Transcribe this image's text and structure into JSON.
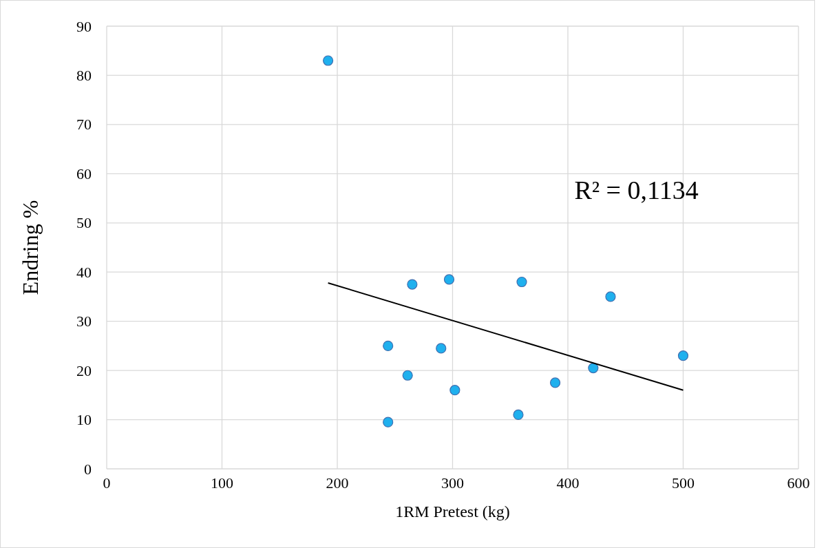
{
  "chart_data": {
    "type": "scatter",
    "xlabel": "1RM Pretest (kg)",
    "ylabel": "Endring %",
    "xlim": [
      0,
      600
    ],
    "xticks": [
      0,
      100,
      200,
      300,
      400,
      500,
      600
    ],
    "ylim": [
      0,
      90
    ],
    "yticks": [
      0,
      10,
      20,
      30,
      40,
      50,
      60,
      70,
      80,
      90
    ],
    "grid": true,
    "series": [
      {
        "marker": "circle",
        "color": "#1fb0ee",
        "x": [
          192,
          265,
          297,
          360,
          437,
          244,
          290,
          261,
          302,
          244,
          357,
          389,
          422,
          500
        ],
        "values": [
          83,
          37.5,
          38.5,
          38,
          35,
          25,
          24.5,
          19,
          16,
          9.5,
          11,
          17.5,
          20.5,
          23
        ]
      },
      {
        "type": "line",
        "color": "#000000",
        "x": [
          192,
          500
        ],
        "values": [
          37.8,
          16
        ]
      }
    ],
    "annotations": [
      "R² = 0,1134"
    ]
  }
}
